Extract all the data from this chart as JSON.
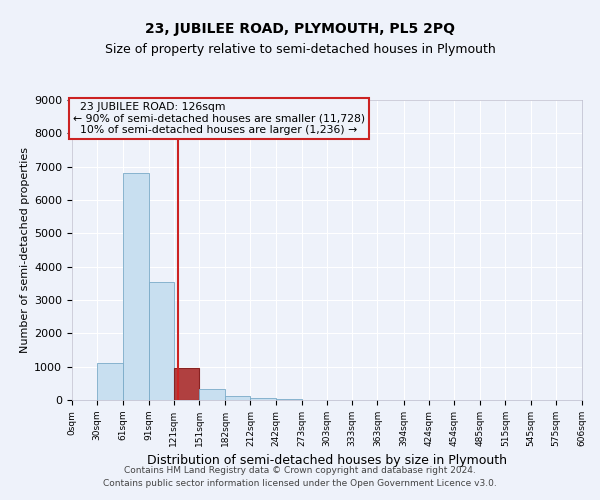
{
  "title": "23, JUBILEE ROAD, PLYMOUTH, PL5 2PQ",
  "subtitle": "Size of property relative to semi-detached houses in Plymouth",
  "xlabel": "Distribution of semi-detached houses by size in Plymouth",
  "ylabel": "Number of semi-detached properties",
  "annotation_line1": "  23 JUBILEE ROAD: 126sqm  ",
  "annotation_line2": "← 90% of semi-detached houses are smaller (11,728)",
  "annotation_line3": "  10% of semi-detached houses are larger (1,236) →",
  "bin_edges": [
    0,
    30,
    61,
    91,
    121,
    151,
    182,
    212,
    242,
    273,
    303,
    333,
    363,
    394,
    424,
    454,
    485,
    515,
    545,
    575,
    606
  ],
  "bar_heights": [
    0,
    1100,
    6800,
    3550,
    950,
    320,
    130,
    60,
    30,
    15,
    7,
    3,
    2,
    1,
    1,
    0,
    0,
    0,
    0,
    0
  ],
  "bar_color_normal": "#c8dff0",
  "bar_color_highlight": "#b04040",
  "bar_edge_color_normal": "#7aaac8",
  "bar_edge_color_highlight": "#882222",
  "vline_color": "#cc2222",
  "vline_x": 126,
  "highlight_bin_index": 4,
  "annotation_box_edgecolor": "#cc2222",
  "ylim": [
    0,
    9000
  ],
  "yticks": [
    0,
    1000,
    2000,
    3000,
    4000,
    5000,
    6000,
    7000,
    8000,
    9000
  ],
  "background_color": "#eef2fa",
  "grid_color": "#ffffff",
  "title_fontsize": 10,
  "subtitle_fontsize": 9,
  "footer_line1": "Contains HM Land Registry data © Crown copyright and database right 2024.",
  "footer_line2": "Contains public sector information licensed under the Open Government Licence v3.0."
}
